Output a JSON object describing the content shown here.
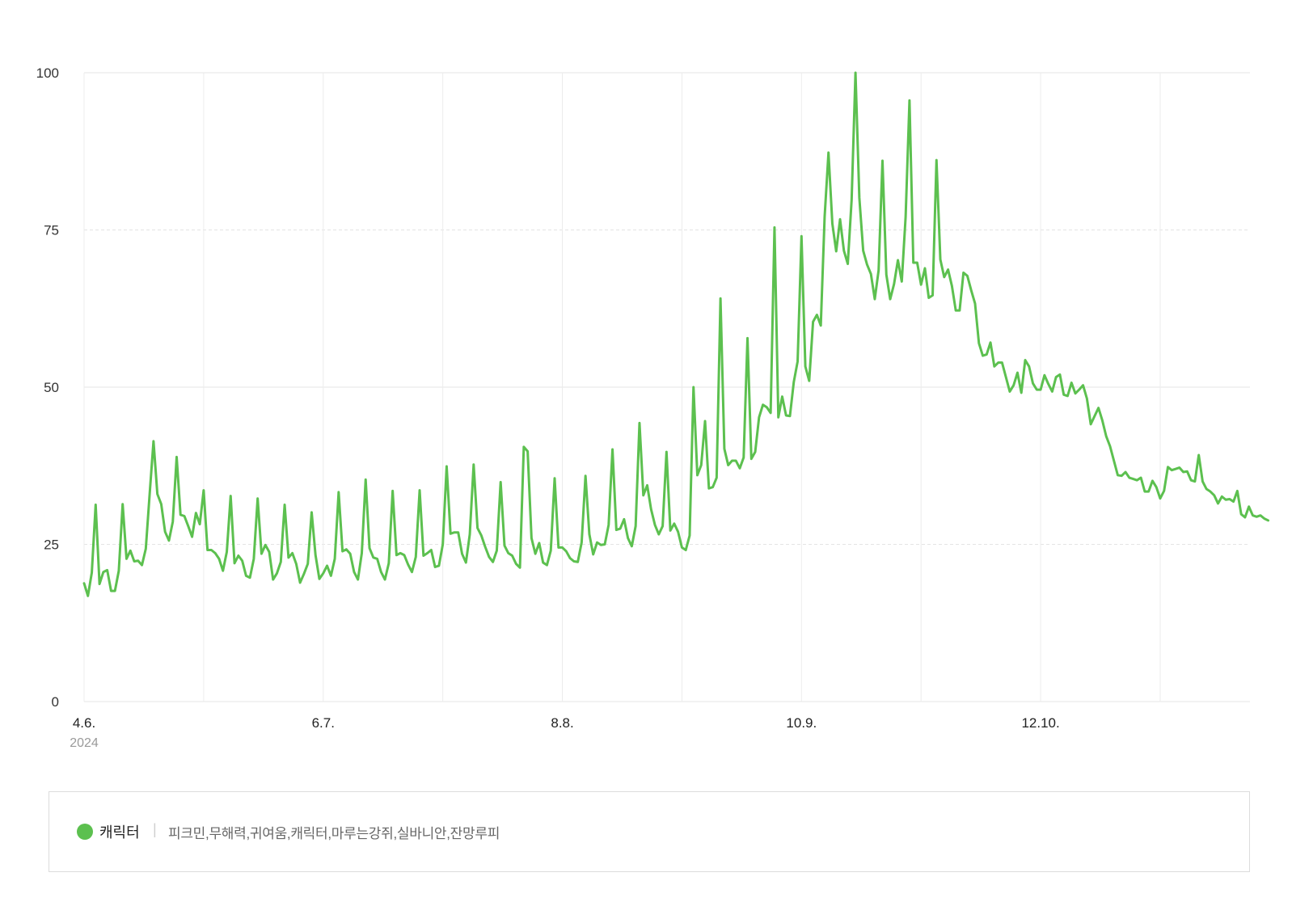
{
  "chart_data": {
    "type": "line",
    "ylim": [
      0,
      100
    ],
    "y_ticks": [
      0,
      25,
      50,
      75,
      100
    ],
    "x_tick_labels": [
      {
        "date": "2024-04-06",
        "label": "4.6."
      },
      {
        "date": "2024-06-07",
        "label": "6.7."
      },
      {
        "date": "2024-08-08",
        "label": "8.8."
      },
      {
        "date": "2024-10-09",
        "label": "10.9."
      },
      {
        "date": "2024-12-10",
        "label": "12.10."
      }
    ],
    "year_label": "2024",
    "grid": true,
    "line_color": "#5cc04f",
    "start_date": "2024-04-06",
    "series": [
      {
        "name": "캐릭터",
        "values": [
          18.8,
          16.8,
          20.5,
          31.3,
          18.7,
          20.6,
          20.9,
          17.6,
          17.6,
          20.8,
          31.4,
          22.7,
          24.0,
          22.3,
          22.4,
          21.7,
          24.3,
          33.0,
          41.4,
          33.0,
          31.4,
          27.0,
          25.6,
          28.6,
          38.9,
          29.7,
          29.5,
          27.9,
          26.2,
          30.0,
          28.2,
          33.6,
          24.1,
          24.1,
          23.6,
          22.7,
          20.8,
          23.8,
          32.7,
          22.0,
          23.2,
          22.4,
          20.0,
          19.7,
          22.7,
          32.3,
          23.5,
          24.9,
          23.8,
          19.4,
          20.4,
          22.2,
          31.3,
          22.9,
          23.6,
          21.9,
          18.9,
          20.3,
          21.9,
          30.1,
          23.3,
          19.5,
          20.4,
          21.6,
          20.0,
          22.7,
          33.3,
          23.9,
          24.2,
          23.5,
          20.6,
          19.4,
          23.6,
          35.3,
          24.4,
          22.9,
          22.7,
          20.6,
          19.4,
          22.0,
          33.5,
          23.3,
          23.6,
          23.3,
          21.8,
          20.6,
          23.0,
          33.6,
          23.2,
          23.6,
          24.1,
          21.4,
          21.6,
          25.0,
          37.4,
          26.7,
          26.9,
          26.9,
          23.5,
          22.1,
          26.6,
          37.7,
          27.6,
          26.4,
          24.6,
          23.0,
          22.2,
          24.0,
          34.9,
          24.8,
          23.6,
          23.2,
          21.9,
          21.3,
          40.5,
          39.8,
          26.0,
          23.5,
          25.2,
          22.1,
          21.7,
          24.0,
          35.5,
          24.5,
          24.5,
          23.9,
          22.8,
          22.3,
          22.2,
          25.3,
          35.9,
          26.6,
          23.4,
          25.3,
          24.9,
          25.0,
          28.1,
          40.1,
          27.3,
          27.5,
          29.0,
          26.0,
          24.7,
          27.9,
          44.3,
          32.8,
          34.4,
          30.6,
          28.1,
          26.6,
          27.9,
          39.7,
          27.2,
          28.3,
          27.0,
          24.5,
          24.1,
          26.4,
          50.0,
          36.0,
          37.6,
          44.6,
          33.9,
          34.1,
          35.6,
          64.1,
          40.2,
          37.6,
          38.3,
          38.3,
          37.1,
          38.8,
          57.8,
          38.6,
          39.7,
          45.2,
          47.2,
          46.8,
          45.9,
          75.4,
          45.2,
          48.5,
          45.5,
          45.4,
          50.8,
          54.1,
          74.0,
          53.3,
          51.0,
          60.4,
          61.5,
          59.8,
          77.1,
          87.3,
          76.0,
          71.6,
          76.7,
          71.7,
          69.6,
          79.8,
          100.0,
          80.1,
          71.7,
          69.5,
          68.0,
          64.0,
          68.6,
          86.0,
          67.9,
          64.0,
          66.4,
          70.2,
          66.8,
          77.1,
          95.6,
          69.8,
          69.8,
          66.3,
          68.9,
          64.2,
          64.6,
          86.1,
          70.3,
          67.5,
          68.7,
          66.1,
          62.2,
          62.2,
          68.2,
          67.7,
          65.4,
          63.3,
          57.0,
          55.0,
          55.2,
          57.1,
          53.3,
          53.9,
          53.9,
          51.6,
          49.3,
          50.3,
          52.3,
          49.1,
          54.3,
          53.3,
          50.6,
          49.6,
          49.6,
          51.9,
          50.5,
          49.3,
          51.6,
          52.0,
          48.8,
          48.6,
          50.7,
          49.0,
          49.6,
          50.3,
          48.2,
          44.1,
          45.4,
          46.7,
          44.7,
          42.2,
          40.6,
          38.3,
          36.0,
          35.9,
          36.5,
          35.6,
          35.4,
          35.2,
          35.6,
          33.4,
          33.4,
          35.1,
          34.1,
          32.3,
          33.5,
          37.3,
          36.8,
          37.0,
          37.2,
          36.5,
          36.6,
          35.2,
          35.0,
          39.2,
          35.0,
          33.8,
          33.4,
          32.8,
          31.5,
          32.6,
          32.1,
          32.2,
          31.8,
          33.5,
          29.8,
          29.3,
          31.0,
          29.6,
          29.4,
          29.6,
          29.1,
          28.8
        ]
      }
    ]
  },
  "legend": {
    "series_name": "캐릭터",
    "separator": "|",
    "keywords": "피크민,무해력,귀여움,캐릭터,마루는강쥐,실바니안,잔망루피"
  }
}
